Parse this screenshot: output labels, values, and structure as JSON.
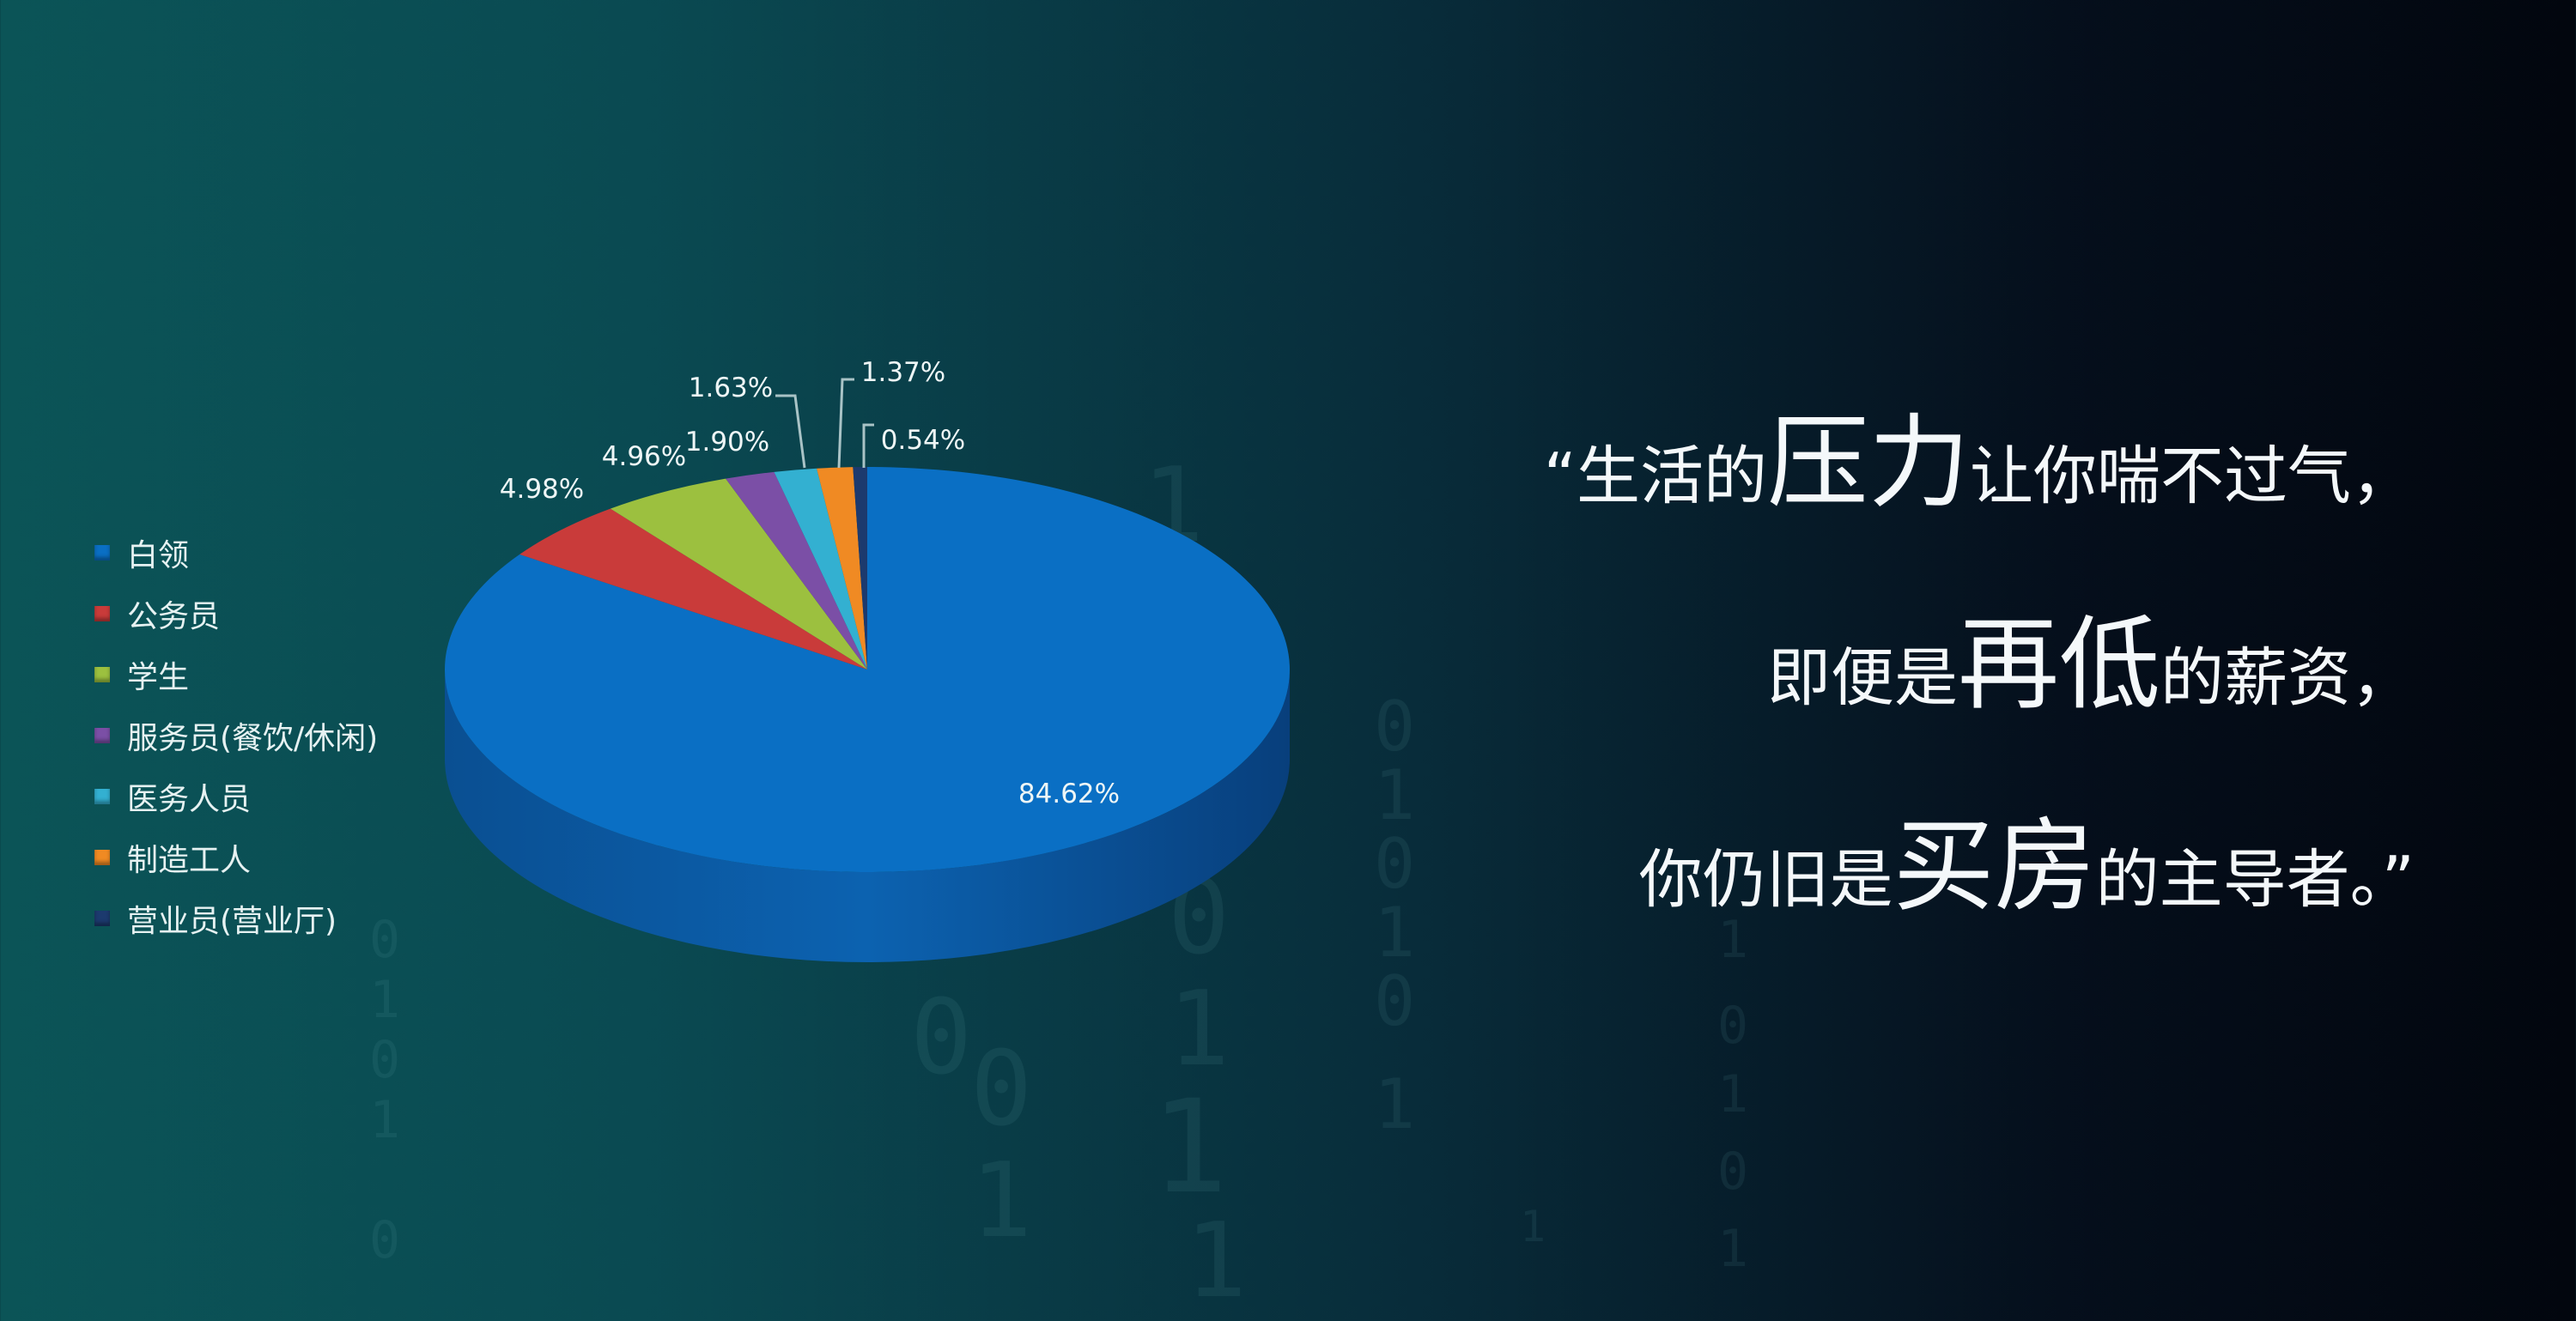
{
  "chart_data": {
    "type": "pie",
    "style": "3d",
    "legend_position": "left",
    "categories": [
      "白领",
      "公务员",
      "学生",
      "服务员(餐饮/休闲)",
      "医务人员",
      "制造工人",
      "营业员(营业厅)"
    ],
    "values": [
      84.62,
      4.98,
      4.96,
      1.9,
      1.63,
      1.37,
      0.54
    ],
    "data_labels": [
      "84.62%",
      "4.98%",
      "4.96%",
      "1.90%",
      "1.63%",
      "1.37%",
      "0.54%"
    ],
    "colors": [
      "#0a6fc4",
      "#c93b3a",
      "#9cc03f",
      "#7b4fa6",
      "#33b0d1",
      "#f08a23",
      "#1c3a6e"
    ]
  },
  "quote": {
    "line1": [
      {
        "text": "“生活的",
        "big": false
      },
      {
        "text": "压力",
        "big": true
      },
      {
        "text": "让你喘不过气，",
        "big": false
      }
    ],
    "line2": [
      {
        "text": "即便是",
        "big": false
      },
      {
        "text": "再低",
        "big": true
      },
      {
        "text": "的薪资，",
        "big": false
      }
    ],
    "line3": [
      {
        "text": "你仍旧是",
        "big": false
      },
      {
        "text": "买房",
        "big": true
      },
      {
        "text": "的主导者。”",
        "big": false
      }
    ]
  },
  "background_digits": [
    "1",
    "1",
    "0",
    "1",
    "0",
    "1",
    "0",
    "1",
    "0",
    "1",
    "0",
    "1",
    "0",
    "1",
    "0",
    "1",
    "0",
    "1",
    "0",
    "1",
    "0",
    "1",
    "1",
    "0",
    "1"
  ]
}
